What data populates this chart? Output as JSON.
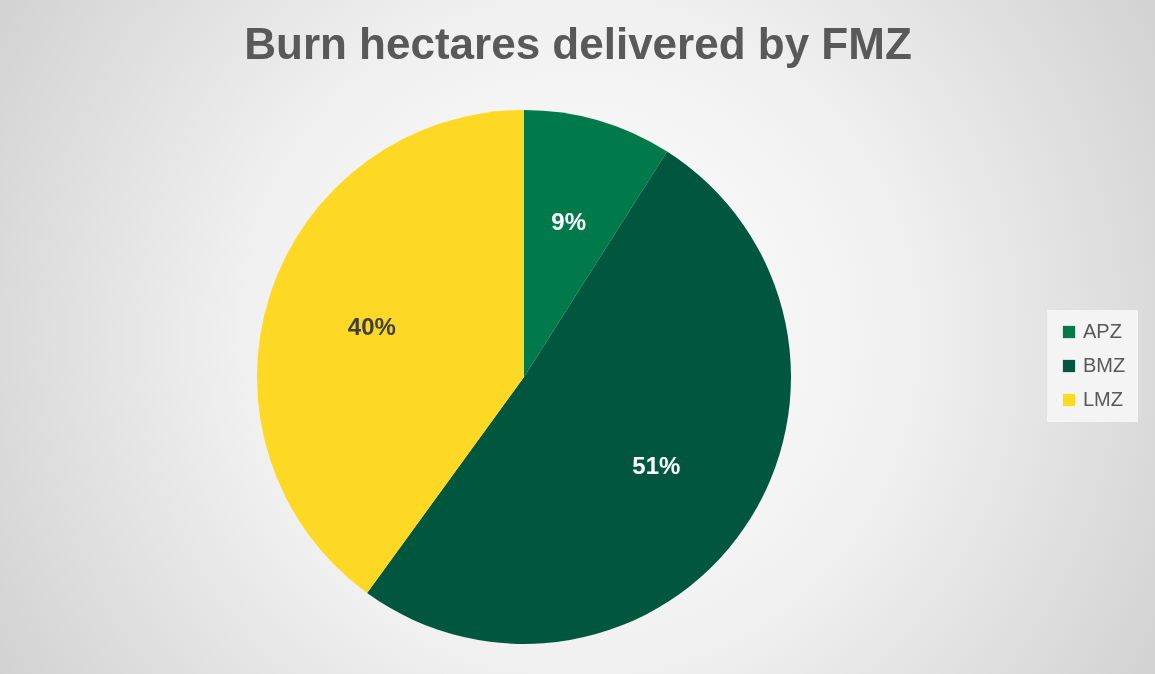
{
  "chart_data": {
    "type": "pie",
    "title": "Burn hectares delivered by FMZ",
    "categories": [
      "APZ",
      "BMZ",
      "LMZ"
    ],
    "values": [
      9,
      51,
      40
    ],
    "colors": [
      "#007a4a",
      "#00573d",
      "#fdd825"
    ],
    "value_labels": [
      "9%",
      "51%",
      "40%"
    ],
    "legend": "right"
  }
}
